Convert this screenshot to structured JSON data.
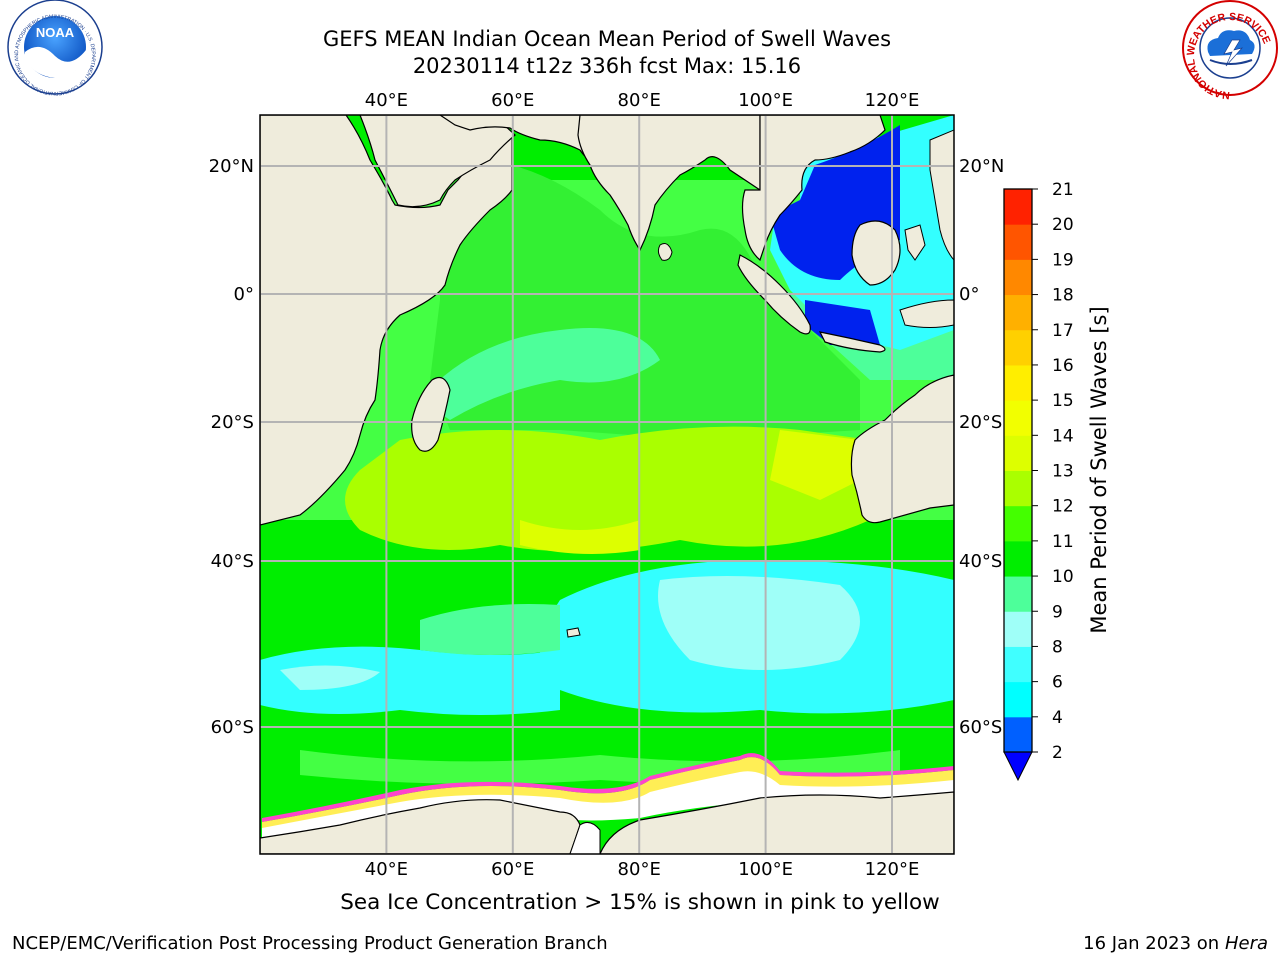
{
  "header": {
    "title": "GEFS MEAN Indian Ocean Mean Period of Swell Waves",
    "subtitle": "20230114 t12z 336h fcst   Max: 15.16",
    "logo_left_text": "NOAA",
    "logo_left_ring": "NATIONAL OCEANIC AND ATMOSPHERIC ADMINISTRATION · U.S. DEPARTMENT OF COMMERCE",
    "logo_right_ring": "NATIONAL WEATHER SERVICE"
  },
  "map": {
    "lon_labels": [
      "40°E",
      "60°E",
      "80°E",
      "100°E",
      "120°E"
    ],
    "lon_values": [
      40,
      60,
      80,
      100,
      120
    ],
    "lat_labels_left": [
      "20°N",
      "0°",
      "20°S",
      "40°S",
      "60°S"
    ],
    "lat_labels_right": [
      "20°N",
      "0°",
      "20°S",
      "40°S",
      "60°S"
    ],
    "lat_values": [
      20,
      0,
      -20,
      -40,
      -60
    ],
    "colors": {
      "land": "#efecdc",
      "grid": "#b4b4b4",
      "green_bright": "#00ee00",
      "green_mid": "#44ff44",
      "green_yellow": "#aaff00",
      "yellow_green": "#ddff00",
      "aqua_green": "#4dff9a",
      "cyan_pale": "#9ffff8",
      "cyan": "#33ffff",
      "blue_dark": "#0022ee",
      "sea_ice_pink": "#ff44cc",
      "sea_ice_yellow": "#ffee55"
    }
  },
  "colorbar": {
    "label": "Mean Period of Swell Waves [s]",
    "ticks": [
      "2",
      "4",
      "6",
      "8",
      "9",
      "10",
      "11",
      "12",
      "13",
      "14",
      "15",
      "16",
      "17",
      "18",
      "19",
      "20",
      "21"
    ],
    "colors": [
      "#0060ff",
      "#00ffff",
      "#40ffff",
      "#9ffff8",
      "#4dff9a",
      "#00ee00",
      "#44ff00",
      "#aaff00",
      "#ddff00",
      "#f2ff00",
      "#ffee00",
      "#ffd000",
      "#ffb000",
      "#ff8800",
      "#ff5500",
      "#ff2200"
    ],
    "extend_color": "#0000ff"
  },
  "note": "Sea Ice Concentration > 15% is shown in pink to yellow",
  "footer": {
    "left": "NCEP/EMC/Verification Post Processing Product Generation Branch",
    "right_date": "16 Jan 2023 on",
    "right_machine": "Hera"
  }
}
